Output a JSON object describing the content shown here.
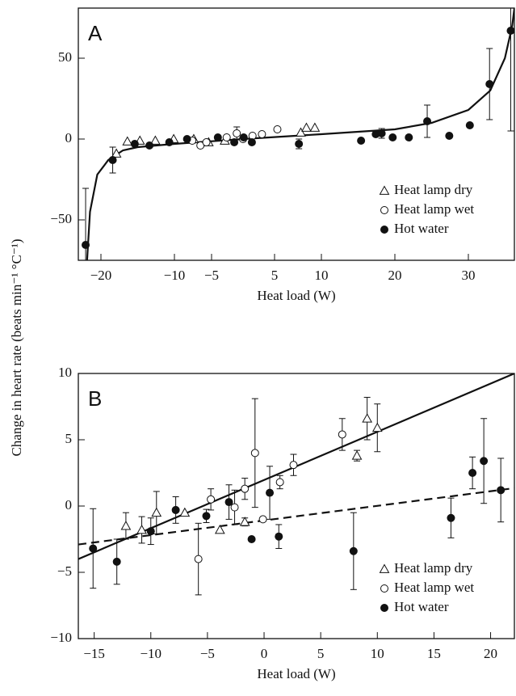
{
  "y_label": "Change in heart rate (beats min⁻¹ °C⁻¹)",
  "chart_data": [
    {
      "type": "scatter",
      "panel_label": "A",
      "xlabel": "Heat load (W)",
      "xlim": [
        -23.1,
        36.3
      ],
      "ylim": [
        -75,
        81
      ],
      "xticks": [
        {
          "value": -20,
          "label": "−20"
        },
        {
          "value": -10,
          "label": "−10"
        },
        {
          "value": -5,
          "label": "−5"
        },
        5,
        10,
        20,
        30
      ],
      "yticks": [
        {
          "value": -50,
          "label": "−50"
        },
        0,
        50
      ],
      "series": [
        {
          "name": "Heat lamp dry",
          "marker": "triangle",
          "color": "#111111",
          "x": [
            -17.9,
            -16.4,
            -14.7,
            -12.6,
            -10.1,
            -7.4,
            -5.4,
            -2.9,
            7.8,
            8.4,
            9.3
          ],
          "values": [
            -9,
            -1.5,
            -1,
            -1,
            0,
            0,
            -2,
            -1,
            4,
            7,
            7
          ],
          "errors": [
            null,
            null,
            null,
            null,
            null,
            null,
            null,
            null,
            null,
            null,
            null
          ]
        },
        {
          "name": "Heat lamp wet",
          "marker": "circle-open",
          "color": "#111111",
          "x": [
            -7.6,
            -6.5,
            -5.7,
            -2.6,
            -1.0,
            0,
            1.5,
            3,
            5.3
          ],
          "values": [
            -1,
            -4,
            -2,
            1,
            3.5,
            0,
            2,
            3,
            6
          ],
          "errors": [
            null,
            null,
            null,
            null,
            4,
            null,
            null,
            null,
            null
          ]
        },
        {
          "name": "Hot water",
          "marker": "circle",
          "color": "#111111",
          "x": [
            -22.1,
            -18.4,
            -15.4,
            -13.4,
            -10.7,
            -8.3,
            -4,
            -1.4,
            0.1,
            1.4,
            7.6,
            15.4,
            17.4,
            18.2,
            19.7,
            21.9,
            24.4,
            27.4,
            30.2,
            32.9,
            35.8
          ],
          "values": [
            -65.5,
            -13,
            -3,
            -4,
            -2,
            0,
            1,
            -2,
            1,
            -2,
            -3,
            -1,
            3,
            3.5,
            1,
            1,
            11,
            2,
            8.5,
            34,
            67
          ],
          "errors": [
            35,
            8,
            null,
            null,
            null,
            null,
            null,
            null,
            null,
            null,
            3,
            null,
            null,
            3,
            null,
            null,
            10,
            null,
            null,
            22,
            62
          ]
        }
      ],
      "fits": [
        {
          "style": "solid",
          "x": [
            -21.9,
            -21.5,
            -20.5,
            -19,
            -17,
            -15,
            -10,
            0,
            10,
            20,
            25,
            30,
            33,
            35,
            36,
            36.3
          ],
          "y": [
            -75,
            -45,
            -22,
            -13,
            -7,
            -5,
            -3,
            0,
            3,
            6,
            10,
            18,
            30,
            50,
            70,
            81
          ]
        }
      ]
    },
    {
      "type": "scatter",
      "panel_label": "B",
      "xlabel": "Heat load (W)",
      "xlim": [
        -16.4,
        22.1
      ],
      "ylim": [
        -10,
        10
      ],
      "xticks": [
        {
          "value": -15,
          "label": "−15"
        },
        {
          "value": -10,
          "label": "−10"
        },
        {
          "value": -5,
          "label": "−5"
        },
        0,
        5,
        10,
        15,
        20
      ],
      "yticks": [
        {
          "value": -10,
          "label": "−10"
        },
        {
          "value": -5,
          "label": "−5"
        },
        0,
        5,
        10
      ],
      "series": [
        {
          "name": "Heat lamp dry",
          "marker": "triangle",
          "color": "#111111",
          "x": [
            -12.2,
            -10.8,
            -9.5,
            -7,
            -3.9,
            -1.7,
            8.2,
            9.1,
            10
          ],
          "values": [
            -1.5,
            -1.8,
            -0.5,
            -0.5,
            -1.8,
            -1.2,
            3.8,
            6.6,
            5.9
          ],
          "errors": [
            1,
            1,
            1.6,
            null,
            null,
            0.3,
            0.4,
            1.6,
            1.8
          ]
        },
        {
          "name": "Heat lamp wet",
          "marker": "circle-open",
          "color": "#111111",
          "x": [
            -5.8,
            -4.7,
            -2.6,
            -1.7,
            -0.8,
            -0.1,
            1.4,
            2.6,
            6.9
          ],
          "values": [
            -4,
            0.5,
            -0.1,
            1.3,
            4,
            -1,
            1.8,
            3.1,
            5.4
          ],
          "errors": [
            2.7,
            0.8,
            1.3,
            0.8,
            4.1,
            null,
            0.5,
            0.8,
            1.2
          ]
        },
        {
          "name": "Hot water",
          "marker": "circle",
          "color": "#111111",
          "x": [
            -15.1,
            -13,
            -10,
            -7.8,
            -5.1,
            -3.1,
            -1.1,
            0.5,
            1.3,
            7.9,
            16.5,
            18.4,
            19.4,
            20.9
          ],
          "values": [
            -3.2,
            -4.2,
            -1.9,
            -0.3,
            -0.75,
            0.3,
            -2.5,
            1,
            -2.3,
            -3.4,
            -0.9,
            2.5,
            3.4,
            1.2
          ],
          "errors": [
            3,
            1.7,
            1,
            1,
            0.5,
            1.3,
            null,
            2,
            0.9,
            2.9,
            1.5,
            1.2,
            3.2,
            2.4
          ]
        }
      ],
      "fits": [
        {
          "style": "solid",
          "x": [
            -16.4,
            22.1
          ],
          "y": [
            -4,
            10
          ]
        },
        {
          "style": "dashed",
          "x": [
            -16.4,
            22.1
          ],
          "y": [
            -2.9,
            1.35
          ]
        }
      ]
    }
  ]
}
